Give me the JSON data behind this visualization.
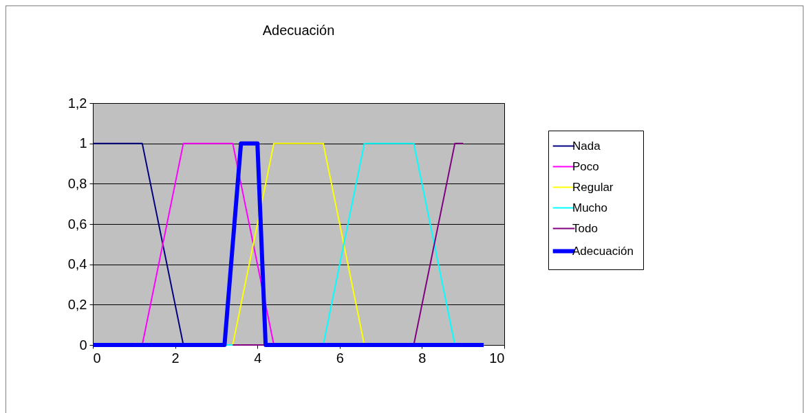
{
  "chart_data": {
    "type": "line",
    "title": "Adecuación",
    "xlim": [
      0,
      10
    ],
    "xticks": [
      0,
      2,
      4,
      6,
      8,
      10
    ],
    "ylim": [
      0,
      1.2
    ],
    "yticks": [
      0,
      {
        "value": 0.2,
        "label": "0,2"
      },
      {
        "value": 0.4,
        "label": "0,4"
      },
      {
        "value": 0.6,
        "label": "0,6"
      },
      {
        "value": 0.8,
        "label": "0,8"
      },
      1,
      {
        "value": 1.2,
        "label": "1,2"
      }
    ],
    "grid": "y",
    "legend": "right",
    "marker": "none",
    "line_style": "solid",
    "series": [
      {
        "name": "Nada",
        "color": "#000080",
        "x": [
          0,
          1.2,
          2.2
        ],
        "values": [
          1,
          1,
          0
        ]
      },
      {
        "name": "Poco",
        "color": "#ff00ff",
        "x": [
          0,
          1.2,
          2.2,
          3.4,
          4.4,
          9.5
        ],
        "values": [
          0,
          0,
          1,
          1,
          0,
          0
        ]
      },
      {
        "name": "Regular",
        "color": "#ffff00",
        "x": [
          0,
          3.4,
          4.4,
          5.6,
          6.6,
          9.5
        ],
        "values": [
          0,
          0,
          1,
          1,
          0,
          0
        ]
      },
      {
        "name": "Mucho",
        "color": "#00ffff",
        "x": [
          0,
          5.6,
          6.6,
          7.8,
          8.8,
          9.5
        ],
        "values": [
          0,
          0,
          1,
          1,
          0,
          0
        ]
      },
      {
        "name": "Todo",
        "color": "#800080",
        "x": [
          3.4,
          7.8,
          8.8,
          9
        ],
        "values": [
          0,
          0,
          1,
          1
        ]
      },
      {
        "name": "Adecuación",
        "color": "#0000ff",
        "x": [
          0,
          3.2,
          3.6,
          4.0,
          4.2,
          9.5
        ],
        "values": [
          0,
          0,
          1,
          1,
          0,
          0
        ]
      }
    ]
  }
}
